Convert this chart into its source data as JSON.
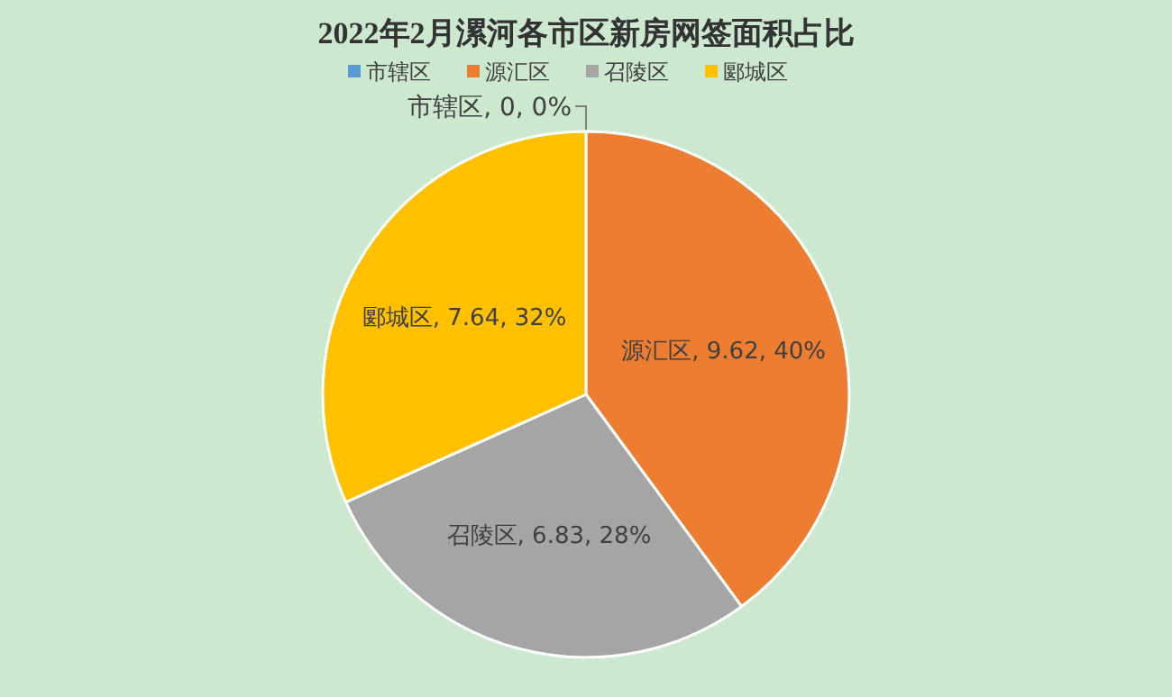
{
  "chart_data": {
    "type": "pie",
    "title": "2022年2月漯河各市区新房网签面积占比",
    "categories": [
      "市辖区",
      "源汇区",
      "召陵区",
      "郾城区"
    ],
    "values": [
      0,
      9.62,
      6.83,
      7.64
    ],
    "colors": [
      "#5b9bd5",
      "#ed7d31",
      "#a5a5a5",
      "#ffc000"
    ],
    "value_labels": [
      "市辖区, 0, 0%",
      "源汇区, 9.62, 40%",
      "召陵区, 6.83, 28%",
      "郾城区, 7.64, 32%"
    ],
    "legend": "top"
  }
}
